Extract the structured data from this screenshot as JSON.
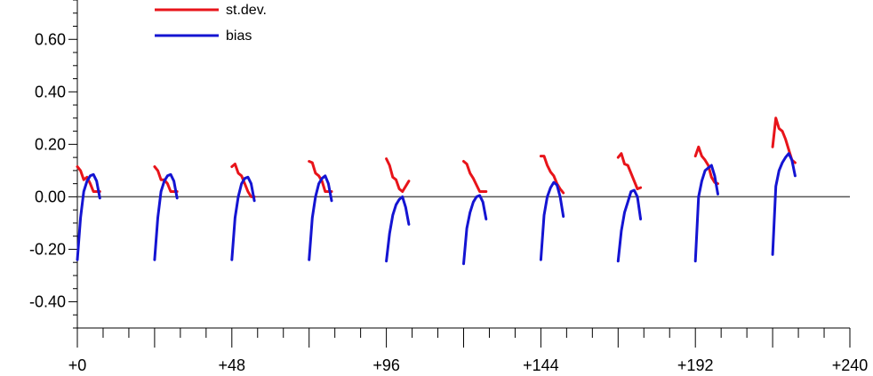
{
  "chart_data": {
    "type": "line",
    "title": "",
    "xlabel": "",
    "ylabel": "",
    "xlim": [
      0,
      240
    ],
    "ylim": [
      -0.5,
      0.75
    ],
    "x_ticks": [
      0,
      48,
      96,
      144,
      192,
      240
    ],
    "x_tick_labels": [
      "+0",
      "+48",
      "+96",
      "+144",
      "+192",
      "+240"
    ],
    "y_ticks": [
      -0.4,
      -0.2,
      0.0,
      0.2,
      0.4,
      0.6
    ],
    "y_tick_labels": [
      "-0.40",
      "-0.20",
      "0.00",
      "0.20",
      "0.40",
      "0.60"
    ],
    "zero_line": true,
    "grid": false,
    "legend_placement": "top-left",
    "series": [
      {
        "name": "st.dev.",
        "color": "#e8141a",
        "segments": [
          [
            [
              0,
              0.115
            ],
            [
              1,
              0.1
            ],
            [
              2,
              0.065
            ],
            [
              3,
              0.075
            ],
            [
              4,
              0.05
            ],
            [
              5,
              0.02
            ],
            [
              6,
              0.02
            ],
            [
              7,
              0.02
            ]
          ],
          [
            [
              24,
              0.115
            ],
            [
              25,
              0.1
            ],
            [
              26,
              0.065
            ],
            [
              27,
              0.065
            ],
            [
              28,
              0.05
            ],
            [
              29,
              0.02
            ],
            [
              30,
              0.02
            ],
            [
              31,
              0.02
            ]
          ],
          [
            [
              48,
              0.115
            ],
            [
              49,
              0.125
            ],
            [
              50,
              0.09
            ],
            [
              51,
              0.08
            ],
            [
              52,
              0.05
            ],
            [
              53,
              0.02
            ],
            [
              54,
              0.0
            ],
            [
              55,
              0.0
            ]
          ],
          [
            [
              72,
              0.135
            ],
            [
              73,
              0.13
            ],
            [
              74,
              0.09
            ],
            [
              75,
              0.08
            ],
            [
              76,
              0.06
            ],
            [
              77,
              0.02
            ],
            [
              78,
              0.02
            ],
            [
              79,
              0.02
            ]
          ],
          [
            [
              96,
              0.145
            ],
            [
              97,
              0.12
            ],
            [
              98,
              0.075
            ],
            [
              99,
              0.065
            ],
            [
              100,
              0.03
            ],
            [
              101,
              0.02
            ],
            [
              102,
              0.04
            ],
            [
              103,
              0.06
            ]
          ],
          [
            [
              120,
              0.135
            ],
            [
              121,
              0.125
            ],
            [
              122,
              0.09
            ],
            [
              123,
              0.07
            ],
            [
              124,
              0.045
            ],
            [
              125,
              0.02
            ],
            [
              126,
              0.02
            ],
            [
              127,
              0.02
            ]
          ],
          [
            [
              144,
              0.155
            ],
            [
              145,
              0.155
            ],
            [
              146,
              0.12
            ],
            [
              147,
              0.095
            ],
            [
              148,
              0.08
            ],
            [
              149,
              0.05
            ],
            [
              150,
              0.03
            ],
            [
              151,
              0.015
            ]
          ],
          [
            [
              168,
              0.15
            ],
            [
              169,
              0.165
            ],
            [
              170,
              0.125
            ],
            [
              171,
              0.12
            ],
            [
              172,
              0.09
            ],
            [
              173,
              0.06
            ],
            [
              174,
              0.03
            ],
            [
              175,
              0.035
            ]
          ],
          [
            [
              192,
              0.155
            ],
            [
              193,
              0.19
            ],
            [
              194,
              0.155
            ],
            [
              195,
              0.14
            ],
            [
              196,
              0.12
            ],
            [
              197,
              0.075
            ],
            [
              198,
              0.055
            ],
            [
              199,
              0.05
            ]
          ],
          [
            [
              216,
              0.19
            ],
            [
              217,
              0.3
            ],
            [
              218,
              0.26
            ],
            [
              219,
              0.25
            ],
            [
              220,
              0.22
            ],
            [
              221,
              0.18
            ],
            [
              222,
              0.14
            ],
            [
              223,
              0.13
            ]
          ]
        ]
      },
      {
        "name": "bias",
        "color": "#1414d2",
        "segments": [
          [
            [
              0,
              -0.24
            ],
            [
              1,
              -0.08
            ],
            [
              2,
              0.02
            ],
            [
              3,
              0.06
            ],
            [
              4,
              0.08
            ],
            [
              5,
              0.085
            ],
            [
              6,
              0.06
            ],
            [
              7,
              -0.005
            ]
          ],
          [
            [
              24,
              -0.24
            ],
            [
              25,
              -0.08
            ],
            [
              26,
              0.02
            ],
            [
              27,
              0.06
            ],
            [
              28,
              0.08
            ],
            [
              29,
              0.085
            ],
            [
              30,
              0.06
            ],
            [
              31,
              -0.005
            ]
          ],
          [
            [
              48,
              -0.24
            ],
            [
              49,
              -0.08
            ],
            [
              50,
              0.0
            ],
            [
              51,
              0.05
            ],
            [
              52,
              0.07
            ],
            [
              53,
              0.075
            ],
            [
              54,
              0.05
            ],
            [
              55,
              -0.015
            ]
          ],
          [
            [
              72,
              -0.24
            ],
            [
              73,
              -0.08
            ],
            [
              74,
              0.0
            ],
            [
              75,
              0.05
            ],
            [
              76,
              0.07
            ],
            [
              77,
              0.08
            ],
            [
              78,
              0.05
            ],
            [
              79,
              -0.015
            ]
          ],
          [
            [
              96,
              -0.245
            ],
            [
              97,
              -0.14
            ],
            [
              98,
              -0.07
            ],
            [
              99,
              -0.03
            ],
            [
              100,
              -0.01
            ],
            [
              101,
              0.0
            ],
            [
              102,
              -0.04
            ],
            [
              103,
              -0.105
            ]
          ],
          [
            [
              120,
              -0.255
            ],
            [
              121,
              -0.12
            ],
            [
              122,
              -0.06
            ],
            [
              123,
              -0.02
            ],
            [
              124,
              0.0
            ],
            [
              125,
              0.005
            ],
            [
              126,
              -0.02
            ],
            [
              127,
              -0.085
            ]
          ],
          [
            [
              144,
              -0.24
            ],
            [
              145,
              -0.07
            ],
            [
              146,
              0.0
            ],
            [
              147,
              0.035
            ],
            [
              148,
              0.055
            ],
            [
              149,
              0.045
            ],
            [
              150,
              0.0
            ],
            [
              151,
              -0.075
            ]
          ],
          [
            [
              168,
              -0.245
            ],
            [
              169,
              -0.13
            ],
            [
              170,
              -0.06
            ],
            [
              171,
              -0.02
            ],
            [
              172,
              0.02
            ],
            [
              173,
              0.025
            ],
            [
              174,
              0.0
            ],
            [
              175,
              -0.085
            ]
          ],
          [
            [
              192,
              -0.245
            ],
            [
              193,
              0.0
            ],
            [
              194,
              0.06
            ],
            [
              195,
              0.1
            ],
            [
              196,
              0.11
            ],
            [
              197,
              0.12
            ],
            [
              198,
              0.08
            ],
            [
              199,
              0.01
            ]
          ],
          [
            [
              216,
              -0.22
            ],
            [
              217,
              0.04
            ],
            [
              218,
              0.1
            ],
            [
              219,
              0.13
            ],
            [
              220,
              0.15
            ],
            [
              221,
              0.165
            ],
            [
              222,
              0.14
            ],
            [
              223,
              0.08
            ]
          ]
        ]
      }
    ]
  }
}
